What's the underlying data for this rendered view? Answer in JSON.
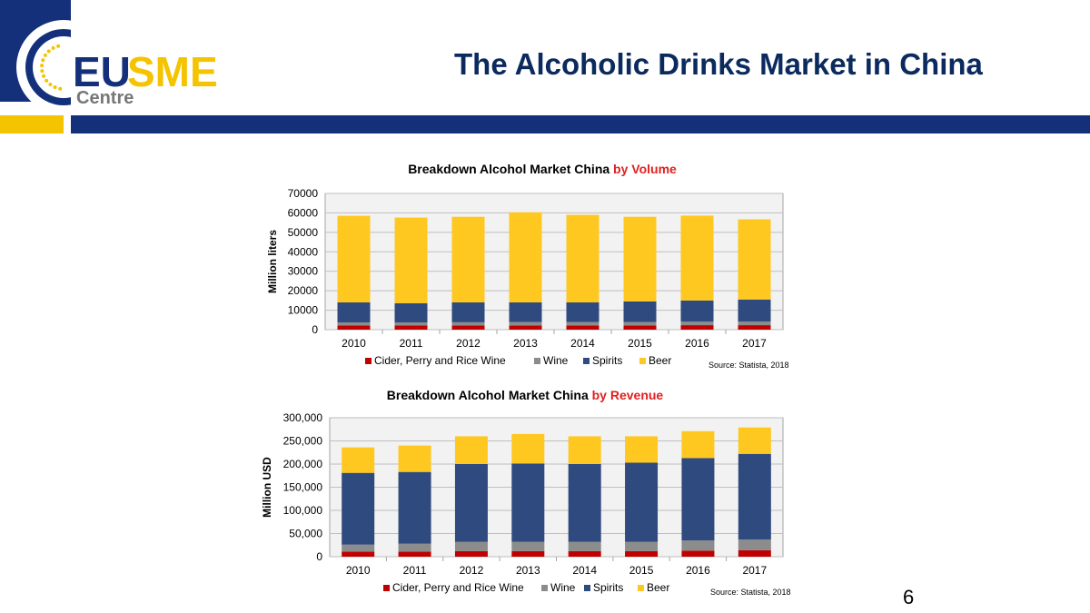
{
  "slide": {
    "title": "The Alcoholic Drinks Market in China",
    "page_number": "6",
    "logo": {
      "line1": "EUSME",
      "line2": "Centre"
    }
  },
  "colors": {
    "series": [
      "#c00000",
      "#8c8c8c",
      "#2f4a7e",
      "#ffc820"
    ],
    "title_highlight": "#e02020",
    "brand_blue": "#14307a",
    "brand_yellow": "#f5c400",
    "plot_bg": "#f2f2f2",
    "grid": "#bfbfbf"
  },
  "chart_data": [
    {
      "type": "bar",
      "stacked": true,
      "title": "Breakdown Alcohol Market China",
      "title_highlight": "by Volume",
      "ylabel": "Million liters",
      "source": "Source: Statista, 2018",
      "ylim": [
        0,
        70000
      ],
      "yticks": [
        0,
        10000,
        20000,
        30000,
        40000,
        50000,
        60000,
        70000
      ],
      "ytick_labels": [
        "0",
        "10000",
        "20000",
        "30000",
        "40000",
        "50000",
        "60000",
        "70000"
      ],
      "categories": [
        "2010",
        "2011",
        "2012",
        "2013",
        "2014",
        "2015",
        "2016",
        "2017"
      ],
      "legend_position": "bottom",
      "grid": true,
      "series": [
        {
          "name": "Cider, Perry and Rice Wine",
          "values": [
            2200,
            2200,
            2200,
            2200,
            2200,
            2200,
            2300,
            2300
          ]
        },
        {
          "name": "Wine",
          "values": [
            1500,
            1500,
            1600,
            1700,
            1700,
            1700,
            1800,
            1900
          ]
        },
        {
          "name": "Spirits",
          "values": [
            10300,
            9900,
            10200,
            10100,
            10100,
            10600,
            10900,
            11300
          ]
        },
        {
          "name": "Beer",
          "values": [
            44500,
            44000,
            44000,
            46300,
            45000,
            43500,
            43600,
            41200
          ]
        }
      ]
    },
    {
      "type": "bar",
      "stacked": true,
      "title": "Breakdown Alcohol Market China",
      "title_highlight": "by Revenue",
      "ylabel": "Million USD",
      "source": "Source: Statista, 2018",
      "ylim": [
        0,
        300000
      ],
      "yticks": [
        0,
        50000,
        100000,
        150000,
        200000,
        250000,
        300000
      ],
      "ytick_labels": [
        "0",
        "50,000",
        "100,000",
        "150,000",
        "200,000",
        "250,000",
        "300,000"
      ],
      "categories": [
        "2010",
        "2011",
        "2012",
        "2013",
        "2014",
        "2015",
        "2016",
        "2017"
      ],
      "legend_position": "bottom",
      "grid": true,
      "series": [
        {
          "name": "Cider, Perry and Rice Wine",
          "values": [
            11000,
            11000,
            12000,
            12000,
            12000,
            12000,
            13000,
            14000
          ]
        },
        {
          "name": "Wine",
          "values": [
            15000,
            17000,
            20000,
            20000,
            20000,
            20000,
            22000,
            23000
          ]
        },
        {
          "name": "Spirits",
          "values": [
            155000,
            155000,
            168000,
            169000,
            168000,
            171000,
            178000,
            185000
          ]
        },
        {
          "name": "Beer",
          "values": [
            55000,
            57000,
            60000,
            64000,
            60000,
            57000,
            58000,
            57000
          ]
        }
      ]
    }
  ]
}
